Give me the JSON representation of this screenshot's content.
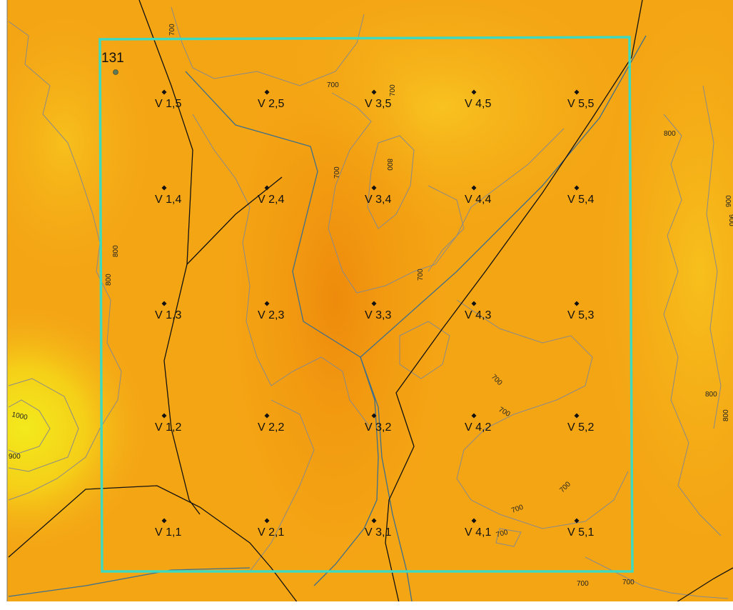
{
  "colors": {
    "terrain_low": "#f39a10",
    "terrain_mid": "#f6b01a",
    "terrain_high": "#f2e21a",
    "contour": "#8a8a8a",
    "plot_boundary": "#3fd9c0",
    "road": "#111111",
    "stream": "#3f6f8a",
    "point": "#111111",
    "site_point": "#5b7a55"
  },
  "site": {
    "label": "131"
  },
  "grid_points": [
    {
      "label": "V 1,1"
    },
    {
      "label": "V 2,1"
    },
    {
      "label": "V 3,1"
    },
    {
      "label": "V 4,1"
    },
    {
      "label": "V 5,1"
    },
    {
      "label": "V 1,2"
    },
    {
      "label": "V 2,2"
    },
    {
      "label": "V 3,2"
    },
    {
      "label": "V 4,2"
    },
    {
      "label": "V 5,2"
    },
    {
      "label": "V 1,3"
    },
    {
      "label": "V 2,3"
    },
    {
      "label": "V 3,3"
    },
    {
      "label": "V 4,3"
    },
    {
      "label": "V 5,3"
    },
    {
      "label": "V 1,4"
    },
    {
      "label": "V 2,4"
    },
    {
      "label": "V 3,4"
    },
    {
      "label": "V 4,4"
    },
    {
      "label": "V 5,4"
    },
    {
      "label": "V 1,5"
    },
    {
      "label": "V 2,5"
    },
    {
      "label": "V 3,5"
    },
    {
      "label": "V 4,5"
    },
    {
      "label": "V 5,5"
    }
  ],
  "contour_labels": [
    {
      "text": "700"
    },
    {
      "text": "700"
    },
    {
      "text": "700"
    },
    {
      "text": "800"
    },
    {
      "text": "700"
    },
    {
      "text": "900"
    },
    {
      "text": "800"
    },
    {
      "text": "800"
    },
    {
      "text": "700"
    },
    {
      "text": "1000"
    },
    {
      "text": "900"
    },
    {
      "text": "700"
    },
    {
      "text": "700"
    },
    {
      "text": "800"
    },
    {
      "text": "800"
    },
    {
      "text": "700"
    },
    {
      "text": "700"
    },
    {
      "text": "700"
    },
    {
      "text": "700"
    },
    {
      "text": "700"
    },
    {
      "text": "800"
    },
    {
      "text": "900"
    }
  ]
}
